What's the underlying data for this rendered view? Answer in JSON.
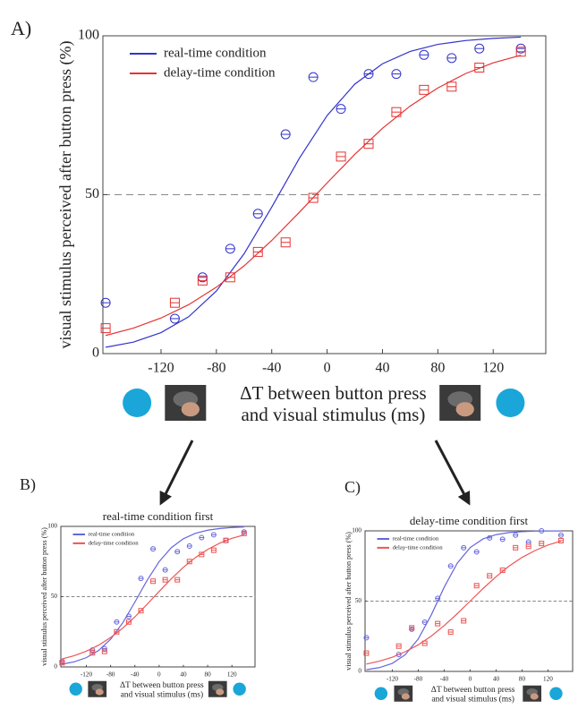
{
  "chart_data": [
    {
      "type": "scatter",
      "panel": "A)",
      "ylabel": "visual stimulus perceived after button press (%)",
      "xlabel": [
        "ΔT between button press",
        "and visual stimulus (ms)"
      ],
      "x": [
        -160,
        -110,
        -90,
        -70,
        -50,
        -30,
        -10,
        10,
        30,
        50,
        70,
        90,
        110,
        140
      ],
      "fit_x": [
        -160,
        -140,
        -120,
        -100,
        -80,
        -60,
        -40,
        -20,
        0,
        20,
        40,
        60,
        80,
        100,
        120,
        140
      ],
      "series": [
        {
          "name": "real-time condition",
          "color": "#3333cc",
          "marker": "circle",
          "values": [
            16,
            11,
            24,
            33,
            44,
            69,
            87,
            77,
            88,
            88,
            94,
            93,
            96,
            96
          ],
          "fit": [
            2.0,
            3.6,
            6.6,
            11.6,
            19.7,
            31.4,
            46.1,
            61.5,
            74.9,
            84.8,
            91.2,
            95.1,
            97.3,
            98.5,
            99.2,
            99.6
          ]
        },
        {
          "name": "delay-time condition",
          "color": "#e53333",
          "marker": "square",
          "values": [
            8,
            16,
            23,
            24,
            32,
            35,
            49,
            62,
            66,
            76,
            83,
            84,
            90,
            95
          ],
          "fit": [
            5.7,
            8.0,
            11.2,
            15.4,
            20.9,
            27.6,
            35.6,
            44.5,
            53.7,
            62.7,
            70.9,
            77.9,
            83.6,
            88.1,
            91.5,
            93.9
          ]
        }
      ],
      "xlim": [
        -162,
        158
      ],
      "ylim": [
        0,
        100
      ],
      "xticks": [
        -120,
        -80,
        -40,
        0,
        40,
        80,
        120
      ],
      "yticks": [
        0,
        50,
        100
      ],
      "reference_line": 50,
      "legend": "upper left"
    },
    {
      "type": "scatter",
      "panel": "B)",
      "title": "real-time condition first",
      "ylabel": "visual stimulus perceived after button press (%)",
      "xlabel": [
        "ΔT between button press",
        "and visual stimulus (ms)"
      ],
      "x": [
        -160,
        -110,
        -90,
        -70,
        -50,
        -30,
        -10,
        10,
        30,
        50,
        70,
        90,
        110,
        140
      ],
      "fit_x": [
        -160,
        -140,
        -120,
        -100,
        -80,
        -60,
        -40,
        -20,
        0,
        20,
        40,
        60,
        80,
        100,
        120,
        140
      ],
      "series": [
        {
          "name": "real-time condition",
          "color": "#6666dd",
          "marker": "circle",
          "values": [
            4,
            12,
            13,
            32,
            36,
            63,
            84,
            69,
            82,
            86,
            92,
            94,
            90,
            96
          ],
          "fit": [
            2.0,
            3.6,
            6.6,
            11.6,
            19.7,
            31.4,
            46.1,
            61.5,
            74.9,
            84.8,
            91.2,
            95.1,
            97.3,
            98.5,
            99.2,
            99.6
          ]
        },
        {
          "name": "delay-time condition",
          "color": "#ee5555",
          "marker": "square",
          "values": [
            3,
            10,
            11,
            25,
            32,
            40,
            61,
            62,
            62,
            75,
            80,
            83,
            90,
            95
          ],
          "fit": [
            5.7,
            8.0,
            11.2,
            15.4,
            20.9,
            27.6,
            35.6,
            44.5,
            53.7,
            62.7,
            70.9,
            77.9,
            83.6,
            88.1,
            91.5,
            93.9
          ]
        }
      ],
      "xlim": [
        -162,
        158
      ],
      "ylim": [
        0,
        100
      ],
      "xticks": [
        -120,
        -80,
        -40,
        0,
        40,
        80,
        120
      ],
      "yticks": [
        0,
        50,
        100
      ],
      "reference_line": 50,
      "legend": "upper left"
    },
    {
      "type": "scatter",
      "panel": "C)",
      "title": "delay-time condition first",
      "ylabel": "visual stimulus perceived after button press (%)",
      "xlabel": [
        "ΔT between button press",
        "and visual stimulus (ms)"
      ],
      "x": [
        -160,
        -110,
        -90,
        -70,
        -50,
        -30,
        -10,
        10,
        30,
        50,
        70,
        90,
        110,
        140
      ],
      "fit_x": [
        -160,
        -140,
        -120,
        -100,
        -80,
        -60,
        -40,
        -20,
        0,
        20,
        40,
        60,
        80,
        100,
        120,
        140
      ],
      "series": [
        {
          "name": "real-time condition",
          "color": "#6666dd",
          "marker": "circle",
          "values": [
            24,
            12,
            30,
            35,
            52,
            75,
            88,
            85,
            95,
            94,
            97,
            92,
            100,
            97
          ],
          "fit": [
            1.2,
            2.7,
            5.7,
            11.9,
            23.1,
            40.1,
            59.9,
            76.9,
            88.1,
            94.3,
            97.3,
            98.8,
            99.4,
            99.8,
            99.9,
            99.9
          ]
        },
        {
          "name": "delay-time condition",
          "color": "#ee5555",
          "marker": "square",
          "values": [
            13,
            18,
            31,
            20,
            34,
            28,
            36,
            61,
            68,
            72,
            88,
            89,
            91,
            93
          ],
          "fit": [
            5.2,
            7.3,
            10.1,
            14.0,
            18.9,
            25.1,
            32.6,
            41.0,
            50.0,
            59.0,
            67.4,
            74.9,
            81.1,
            86.0,
            89.9,
            92.7
          ]
        }
      ],
      "xlim": [
        -162,
        158
      ],
      "ylim": [
        0,
        100
      ],
      "xticks": [
        -120,
        -80,
        -40,
        0,
        40,
        80,
        120
      ],
      "yticks": [
        0,
        50,
        100
      ],
      "reference_line": 50,
      "legend": "upper left"
    }
  ]
}
